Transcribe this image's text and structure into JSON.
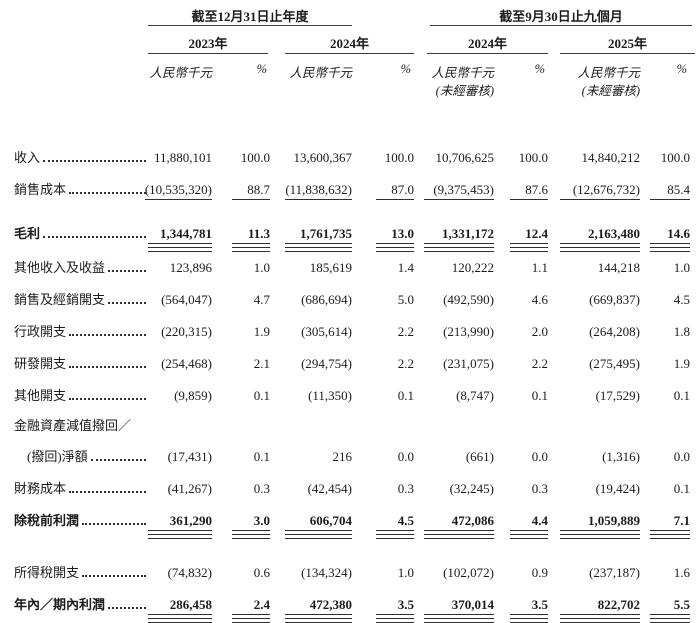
{
  "header": {
    "group1": {
      "title": "截至12月31日止年度",
      "years": [
        "2023年",
        "2024年"
      ]
    },
    "group2": {
      "title": "截至9月30日止九個月",
      "years": [
        "2024年",
        "2025年"
      ],
      "unaudited_note": "(未經審核)"
    },
    "unit_label": "人民幣千元",
    "pct_label": "%"
  },
  "columns": [
    "2023年 人民幣千元",
    "2023年 %",
    "2024年 人民幣千元",
    "2024年 %",
    "2024年(九個月) 人民幣千元",
    "2024年(九個月) %",
    "2025年(九個月) 人民幣千元",
    "2025年(九個月) %"
  ],
  "rows": [
    {
      "label": "收入",
      "vals": [
        "11,880,101",
        "100.0",
        "13,600,367",
        "100.0",
        "10,706,625",
        "100.0",
        "14,840,212",
        "100.0"
      ],
      "rule": "none",
      "bold": false
    },
    {
      "label": "銷售成本",
      "vals": [
        "(10,535,320)",
        "88.7",
        "(11,838,632)",
        "87.0",
        "(9,375,453)",
        "87.6",
        "(12,676,732)",
        "85.4"
      ],
      "rule": "single",
      "bold": false
    },
    {
      "label": "毛利",
      "vals": [
        "1,344,781",
        "11.3",
        "1,761,735",
        "13.0",
        "1,331,172",
        "12.4",
        "2,163,480",
        "14.6"
      ],
      "rule": "total",
      "bold": true,
      "gap_before": true
    },
    {
      "label": "其他收入及收益",
      "vals": [
        "123,896",
        "1.0",
        "185,619",
        "1.4",
        "120,222",
        "1.1",
        "144,218",
        "1.0"
      ],
      "rule": "none",
      "bold": false
    },
    {
      "label": "銷售及經銷開支",
      "vals": [
        "(564,047)",
        "4.7",
        "(686,694)",
        "5.0",
        "(492,590)",
        "4.6",
        "(669,837)",
        "4.5"
      ],
      "rule": "none",
      "bold": false
    },
    {
      "label": "行政開支",
      "vals": [
        "(220,315)",
        "1.9",
        "(305,614)",
        "2.2",
        "(213,990)",
        "2.0",
        "(264,208)",
        "1.8"
      ],
      "rule": "none",
      "bold": false
    },
    {
      "label": "研發開支",
      "vals": [
        "(254,468)",
        "2.1",
        "(294,754)",
        "2.2",
        "(231,075)",
        "2.2",
        "(275,495)",
        "1.9"
      ],
      "rule": "none",
      "bold": false
    },
    {
      "label": "其他開支",
      "vals": [
        "(9,859)",
        "0.1",
        "(11,350)",
        "0.1",
        "(8,747)",
        "0.1",
        "(17,529)",
        "0.1"
      ],
      "rule": "none",
      "bold": false
    },
    {
      "label": "金融資產減值撥回／",
      "vals": null,
      "rule": "none",
      "bold": false,
      "no_leader": true
    },
    {
      "label": "(撥回)淨額",
      "vals": [
        "(17,431)",
        "0.1",
        "216",
        "0.0",
        "(661)",
        "0.0",
        "(1,316)",
        "0.0"
      ],
      "rule": "none",
      "bold": false,
      "indent": true
    },
    {
      "label": "財務成本",
      "vals": [
        "(41,267)",
        "0.3",
        "(42,454)",
        "0.3",
        "(32,245)",
        "0.3",
        "(19,424)",
        "0.1"
      ],
      "rule": "none",
      "bold": false
    },
    {
      "label": "除稅前利潤",
      "vals": [
        "361,290",
        "3.0",
        "606,704",
        "4.5",
        "472,086",
        "4.4",
        "1,059,889",
        "7.1"
      ],
      "rule": "total",
      "bold": true
    },
    {
      "label": "所得稅開支",
      "vals": [
        "(74,832)",
        "0.6",
        "(134,324)",
        "1.0",
        "(102,072)",
        "0.9",
        "(237,187)",
        "1.6"
      ],
      "rule": "none",
      "bold": false,
      "gap_before": true
    },
    {
      "label": "年內／期內利潤",
      "vals": [
        "286,458",
        "2.4",
        "472,380",
        "3.5",
        "370,014",
        "3.5",
        "822,702",
        "5.5"
      ],
      "rule": "total",
      "bold": true
    }
  ],
  "colors": {
    "text": "#1b1b1b",
    "rule": "#3c3c3c",
    "background": "#ffffff"
  }
}
